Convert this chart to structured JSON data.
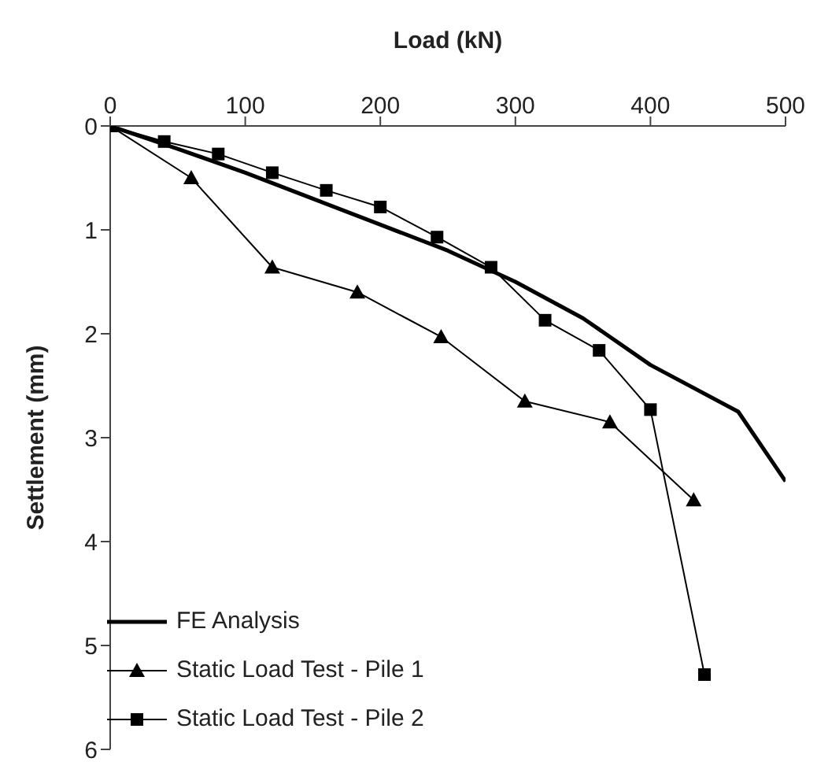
{
  "chart_data": {
    "type": "line",
    "xlabel": "Load (kN)",
    "ylabel": "Settlement (mm)",
    "xlim": [
      0,
      500
    ],
    "xticks": [
      0,
      100,
      200,
      300,
      400,
      500
    ],
    "ylim": [
      6,
      0
    ],
    "yticks": [
      0,
      1,
      2,
      3,
      4,
      5,
      6
    ],
    "grid": false,
    "legend": "bottom left",
    "series": [
      {
        "name": "FE Analysis",
        "color": "#000000",
        "marker": "none",
        "x": [
          0,
          50,
          100,
          150,
          200,
          250,
          300,
          350,
          400,
          465,
          500
        ],
        "values": [
          0,
          0.22,
          0.45,
          0.7,
          0.95,
          1.2,
          1.5,
          1.85,
          2.3,
          2.75,
          3.42
        ]
      },
      {
        "name": "Static Load Test - Pile 1",
        "color": "#000000",
        "marker": "triangle",
        "x": [
          0,
          60,
          120,
          183,
          245,
          307,
          370,
          432
        ],
        "values": [
          0,
          0.5,
          1.36,
          1.6,
          2.03,
          2.65,
          2.85,
          3.6
        ]
      },
      {
        "name": "Static Load Test - Pile 2",
        "color": "#000000",
        "marker": "square",
        "x": [
          0,
          40,
          80,
          120,
          160,
          200,
          242,
          282,
          322,
          362,
          400,
          440
        ],
        "values": [
          0,
          0.15,
          0.27,
          0.45,
          0.62,
          0.78,
          1.07,
          1.36,
          1.87,
          2.16,
          2.73,
          5.28
        ]
      }
    ]
  }
}
